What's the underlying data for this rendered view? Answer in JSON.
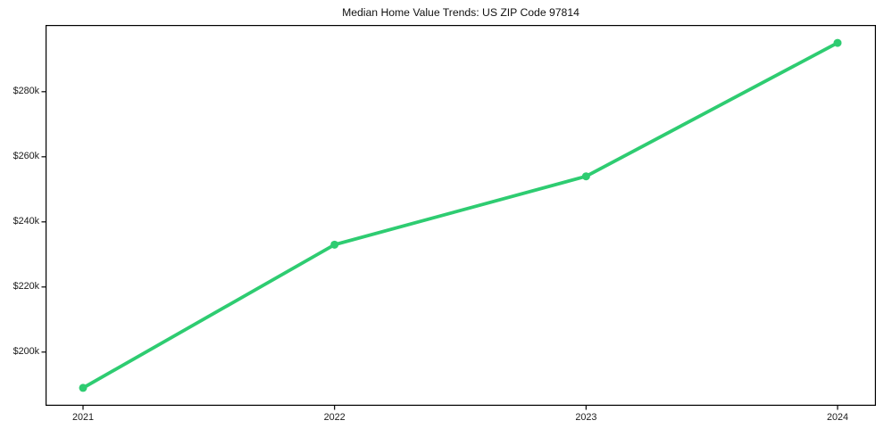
{
  "chart_data": {
    "type": "line",
    "title": "Median Home Value Trends: US ZIP Code 97814",
    "categories": [
      "2021",
      "2022",
      "2023",
      "2024"
    ],
    "series": [
      {
        "name": "Median Home Value",
        "values": [
          189000,
          233000,
          254000,
          295000
        ]
      }
    ],
    "xlabel": "",
    "ylabel": "",
    "ylim": [
      183500,
      300500
    ],
    "yticks": [
      200000,
      220000,
      240000,
      260000,
      280000
    ],
    "ytick_labels": [
      "$200k",
      "$220k",
      "$240k",
      "$260k",
      "$280k"
    ],
    "grid": false,
    "legend_position": "none",
    "line_color": "#2ecc71",
    "marker_color": "#2ecc71",
    "frame_color": "#000000",
    "tick_color": "#000000",
    "text_color": "#1a1a1a",
    "background_color": "#ffffff"
  }
}
